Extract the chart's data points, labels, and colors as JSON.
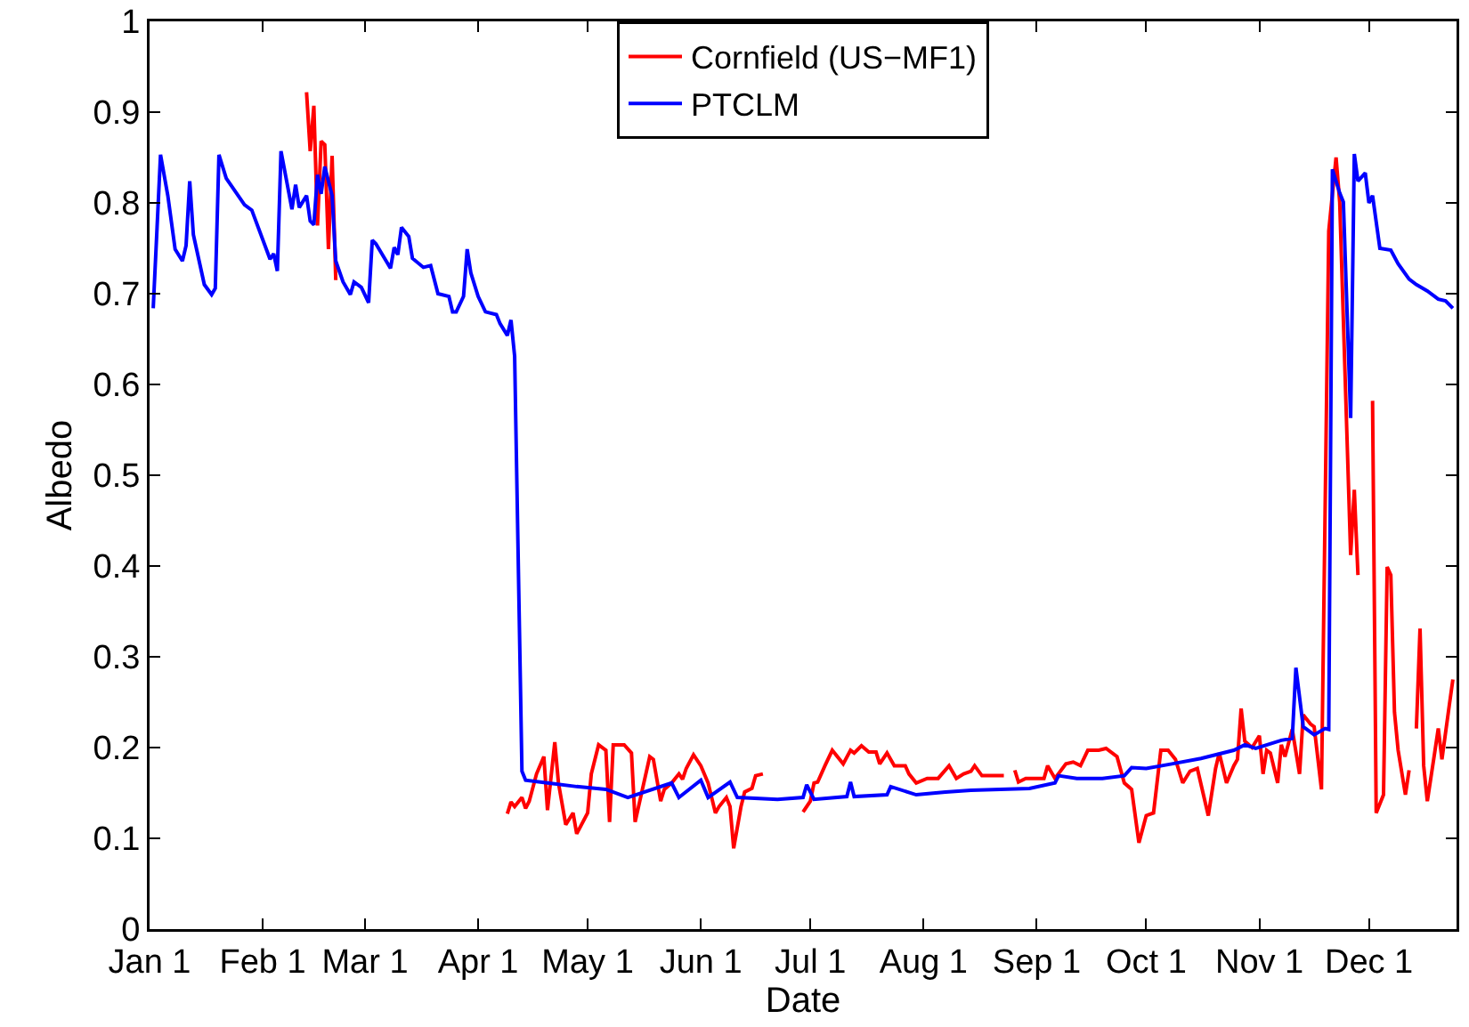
{
  "chart_data": {
    "type": "line",
    "xlabel": "Date",
    "ylabel": "Albedo",
    "xlim": [
      "--01-01",
      "--12-25"
    ],
    "xticks": [
      {
        "value": "--01-01",
        "label": "Jan 1"
      },
      {
        "value": "--02-01",
        "label": "Feb 1"
      },
      {
        "value": "--03-01",
        "label": "Mar 1"
      },
      {
        "value": "--04-01",
        "label": "Apr 1"
      },
      {
        "value": "--05-01",
        "label": "May 1"
      },
      {
        "value": "--06-01",
        "label": "Jun 1"
      },
      {
        "value": "--07-01",
        "label": "Jul 1"
      },
      {
        "value": "--08-01",
        "label": "Aug 1"
      },
      {
        "value": "--09-01",
        "label": "Sep 1"
      },
      {
        "value": "--10-01",
        "label": "Oct 1"
      },
      {
        "value": "--11-01",
        "label": "Nov 1"
      },
      {
        "value": "--12-01",
        "label": "Dec 1"
      }
    ],
    "ylim": [
      0,
      1
    ],
    "yticks": [
      0,
      0.1,
      0.2,
      0.3,
      0.4,
      0.5,
      0.6,
      0.7,
      0.8,
      0.9,
      1
    ],
    "grid": false,
    "legend": "top",
    "line_style": "solid",
    "marker": "none",
    "series": [
      {
        "name": "Cornfield (US−MF1)",
        "color": "#ff0000",
        "x": [
          "--02-13",
          "--02-14",
          "--02-15",
          "--02-16",
          "--02-17",
          "--02-18",
          "--02-19",
          "--02-20",
          "--02-21",
          "--03-11",
          "--04-09",
          "--04-10",
          "--04-11",
          "--04-13",
          "--04-14",
          "--04-15",
          "--04-17",
          "--04-19",
          "--04-20",
          "--04-22",
          "--04-23",
          "--04-25",
          "--04-27",
          "--04-28",
          "--05-01",
          "--05-02",
          "--05-04",
          "--05-06",
          "--05-07",
          "--05-08",
          "--05-11",
          "--05-13",
          "--05-14",
          "--05-16",
          "--05-18",
          "--05-19",
          "--05-21",
          "--05-22",
          "--05-24",
          "--05-26",
          "--05-27",
          "--05-28",
          "--05-30",
          "--06-01",
          "--06-03",
          "--06-05",
          "--06-06",
          "--06-08",
          "--06-09",
          "--06-10",
          "--06-12",
          "--06-13",
          "--06-15",
          "--06-16",
          "--06-18",
          "--06-23",
          "--06-29",
          "--07-01",
          "--07-02",
          "--07-03",
          "--07-05",
          "--07-07",
          "--07-10",
          "--07-12",
          "--07-13",
          "--07-15",
          "--07-17",
          "--07-19",
          "--07-20",
          "--07-22",
          "--07-24",
          "--07-27",
          "--07-28",
          "--07-30",
          "--08-02",
          "--08-05",
          "--08-08",
          "--08-10",
          "--08-12",
          "--08-14",
          "--08-15",
          "--08-17",
          "--08-23",
          "--08-24",
          "--08-26",
          "--08-27",
          "--08-29",
          "--09-03",
          "--09-04",
          "--09-06",
          "--09-09",
          "--09-11",
          "--09-13",
          "--09-15",
          "--09-18",
          "--09-20",
          "--09-23",
          "--09-25",
          "--09-27",
          "--09-29",
          "--10-01",
          "--10-03",
          "--10-05",
          "--10-07",
          "--10-09",
          "--10-11",
          "--10-13",
          "--10-15",
          "--10-18",
          "--10-20",
          "--10-21",
          "--10-23",
          "--10-25",
          "--10-26",
          "--10-27",
          "--10-28",
          "--10-30",
          "--11-01",
          "--11-02",
          "--11-03",
          "--11-04",
          "--11-06",
          "--11-07",
          "--11-08",
          "--11-10",
          "--11-12",
          "--11-13",
          "--11-15",
          "--11-16",
          "--11-18",
          "--11-20",
          "--11-22",
          "--11-23",
          "--11-26",
          "--11-27",
          "--11-28",
          "--11-30",
          "--12-02",
          "--12-03",
          "--12-05",
          "--12-06",
          "--12-07",
          "--12-08",
          "--12-09",
          "--12-11",
          "--12-12",
          "--12-13",
          "--12-14",
          "--12-15",
          "--12-16",
          "--12-17",
          "--12-19",
          "--12-20",
          "--12-21",
          "--12-23",
          "--12-24"
        ],
        "values": [
          0.922,
          0.857,
          0.907,
          0.775,
          0.868,
          0.864,
          0.749,
          0.852,
          0.715,
          null,
          0.127,
          0.14,
          0.135,
          0.145,
          0.133,
          0.141,
          0.171,
          0.19,
          0.131,
          0.206,
          0.161,
          0.115,
          0.128,
          0.105,
          0.128,
          0.171,
          0.203,
          0.197,
          0.118,
          0.203,
          0.203,
          0.194,
          0.118,
          0.154,
          0.19,
          0.187,
          0.141,
          0.154,
          0.161,
          0.171,
          0.165,
          0.177,
          0.192,
          0.18,
          0.161,
          0.128,
          0.135,
          0.145,
          0.135,
          0.089,
          0.135,
          0.151,
          0.155,
          0.169,
          0.171,
          null,
          0.129,
          0.141,
          0.161,
          0.162,
          0.18,
          0.197,
          0.182,
          0.197,
          0.194,
          0.202,
          0.195,
          0.195,
          0.182,
          0.194,
          0.18,
          0.18,
          0.171,
          0.161,
          0.166,
          0.166,
          0.18,
          0.166,
          0.171,
          0.174,
          0.18,
          0.169,
          0.169,
          null,
          0.175,
          0.162,
          0.166,
          0.166,
          0.18,
          0.166,
          0.182,
          0.184,
          0.18,
          0.197,
          0.197,
          0.199,
          0.19,
          0.161,
          0.154,
          0.095,
          0.125,
          0.128,
          0.197,
          0.197,
          0.187,
          0.161,
          0.174,
          0.177,
          0.125,
          0.177,
          0.194,
          0.161,
          0.18,
          0.187,
          0.243,
          0.207,
          0.2,
          0.213,
          0.171,
          0.197,
          0.194,
          0.161,
          0.203,
          0.19,
          0.22,
          0.171,
          0.236,
          0.226,
          0.223,
          0.154,
          0.769,
          0.85,
          0.801,
          0.412,
          0.484,
          0.39,
          null,
          0.582,
          0.128,
          0.148,
          0.399,
          0.39,
          0.239,
          0.197,
          0.148,
          0.175,
          null,
          0.221,
          0.331,
          0.18,
          0.141,
          0.194,
          0.221,
          0.187,
          0.246,
          0.275
        ]
      },
      {
        "name": "PTCLM",
        "color": "#0000ff",
        "x": [
          "--01-02",
          "--01-04",
          "--01-06",
          "--01-08",
          "--01-10",
          "--01-11",
          "--01-12",
          "--01-13",
          "--01-16",
          "--01-18",
          "--01-19",
          "--01-20",
          "--01-22",
          "--01-27",
          "--01-29",
          "--02-03",
          "--02-04",
          "--02-05",
          "--02-06",
          "--02-09",
          "--02-10",
          "--02-11",
          "--02-13",
          "--02-14",
          "--02-15",
          "--02-16",
          "--02-17",
          "--02-18",
          "--02-20",
          "--02-21",
          "--02-23",
          "--02-25",
          "--02-26",
          "--02-28",
          "--03-02",
          "--03-03",
          "--03-04",
          "--03-08",
          "--03-09",
          "--03-10",
          "--03-11",
          "--03-13",
          "--03-14",
          "--03-17",
          "--03-19",
          "--03-21",
          "--03-24",
          "--03-25",
          "--03-26",
          "--03-28",
          "--03-29",
          "--03-30",
          "--04-01",
          "--04-03",
          "--04-06",
          "--04-07",
          "--04-09",
          "--04-10",
          "--04-11",
          "--04-13",
          "--04-14",
          "--04-20",
          "--04-28",
          "--05-06",
          "--05-12",
          "--05-24",
          "--05-26",
          "--06-01",
          "--06-03",
          "--06-09",
          "--06-11",
          "--06-22",
          "--06-29",
          "--06-30",
          "--07-02",
          "--07-11",
          "--07-12",
          "--07-13",
          "--07-22",
          "--07-23",
          "--07-30",
          "--08-07",
          "--08-14",
          "--08-22",
          "--08-30",
          "--09-06",
          "--09-07",
          "--09-12",
          "--09-19",
          "--09-25",
          "--09-27",
          "--10-01",
          "--10-08",
          "--10-16",
          "--10-25",
          "--10-28",
          "--10-31",
          "--11-07",
          "--11-10",
          "--11-11",
          "--11-13",
          "--11-16",
          "--11-19",
          "--11-20",
          "--11-21",
          "--11-23",
          "--11-24",
          "--11-26",
          "--11-27",
          "--11-28",
          "--11-30",
          "--12-01",
          "--12-02",
          "--12-04",
          "--12-07",
          "--12-09",
          "--12-12",
          "--12-14",
          "--12-17",
          "--12-20",
          "--12-22",
          "--12-24"
        ],
        "values": [
          0.684,
          0.853,
          0.808,
          0.749,
          0.736,
          0.753,
          0.824,
          0.765,
          0.71,
          0.699,
          0.706,
          0.853,
          0.827,
          0.798,
          0.792,
          0.738,
          0.744,
          0.725,
          0.857,
          0.793,
          0.82,
          0.795,
          0.808,
          0.78,
          0.776,
          0.831,
          0.81,
          0.84,
          0.808,
          0.736,
          0.713,
          0.699,
          0.713,
          0.707,
          0.69,
          0.759,
          0.755,
          0.728,
          0.751,
          0.743,
          0.773,
          0.763,
          0.739,
          0.729,
          0.731,
          0.7,
          0.697,
          0.68,
          0.68,
          0.697,
          0.749,
          0.723,
          0.697,
          0.68,
          0.677,
          0.667,
          0.654,
          0.671,
          0.631,
          0.174,
          0.164,
          0.161,
          0.157,
          0.154,
          0.145,
          0.161,
          0.145,
          0.164,
          0.145,
          0.162,
          0.145,
          0.143,
          0.145,
          0.159,
          0.143,
          0.146,
          0.162,
          0.146,
          0.148,
          0.157,
          0.148,
          0.151,
          0.153,
          0.154,
          0.155,
          0.161,
          0.169,
          0.166,
          0.166,
          0.169,
          0.178,
          0.177,
          0.182,
          0.188,
          0.197,
          0.203,
          0.199,
          0.208,
          0.21,
          0.288,
          0.223,
          0.214,
          0.221,
          0.22,
          0.837,
          0.811,
          0.801,
          0.563,
          0.854,
          0.824,
          0.833,
          0.8,
          0.808,
          0.75,
          0.748,
          0.733,
          0.716,
          0.71,
          0.703,
          0.694,
          0.692,
          0.684
        ]
      }
    ]
  }
}
